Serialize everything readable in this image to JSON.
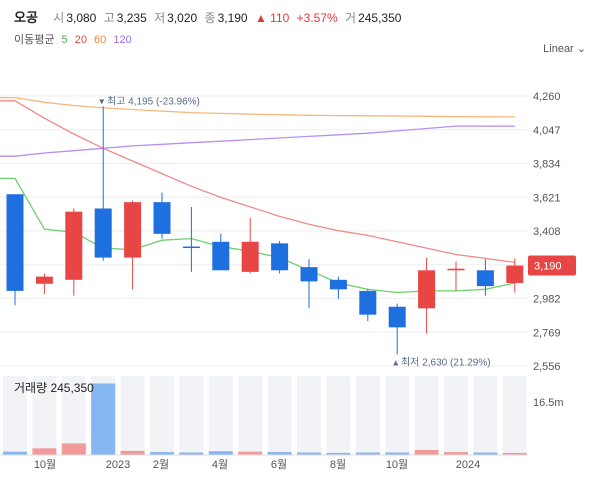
{
  "header": {
    "name": "오공",
    "open_label": "시",
    "open": "3,080",
    "high_label": "고",
    "high": "3,235",
    "low_label": "저",
    "low": "3,020",
    "close_label": "종",
    "close": "3,190",
    "change": "▲ 110",
    "change_pct": "+3.57%",
    "volume_label": "거",
    "volume": "245,350"
  },
  "ma_legend": {
    "label": "이동평균",
    "p5": "5",
    "p20": "20",
    "p60": "60",
    "p120": "120"
  },
  "scale_button": "Linear",
  "colors": {
    "up": "#e84545",
    "down": "#1e6fe0",
    "ma5": "#6fcf6f",
    "ma20": "#f08a8a",
    "ma60": "#f5b77a",
    "ma120": "#b98ef0",
    "grid": "#eeeeee",
    "price_tag": "#e84545"
  },
  "chart_data": {
    "type": "candlestick",
    "x_tick_labels": [
      "10월",
      "2023",
      "2월",
      "4월",
      "6월",
      "8월",
      "10월",
      "2024"
    ],
    "ylim": [
      2556,
      4260
    ],
    "y_ticks": [
      "4,260",
      "4,047",
      "3,834",
      "3,621",
      "3,408",
      "3,195",
      "2,982",
      "2,769",
      "2,556"
    ],
    "current_price": "3,190",
    "candles": [
      {
        "o": 3640,
        "h": 3640,
        "l": 2940,
        "c": 3030
      },
      {
        "o": 3075,
        "h": 3140,
        "l": 3010,
        "c": 3120
      },
      {
        "o": 3100,
        "h": 3550,
        "l": 3000,
        "c": 3530
      },
      {
        "o": 3550,
        "h": 4195,
        "l": 3220,
        "c": 3240
      },
      {
        "o": 3240,
        "h": 3600,
        "l": 3040,
        "c": 3590
      },
      {
        "o": 3590,
        "h": 3650,
        "l": 3360,
        "c": 3390
      },
      {
        "o": 3310,
        "h": 3560,
        "l": 3150,
        "c": 3305
      },
      {
        "o": 3340,
        "h": 3390,
        "l": 3160,
        "c": 3160
      },
      {
        "o": 3150,
        "h": 3490,
        "l": 3140,
        "c": 3340
      },
      {
        "o": 3330,
        "h": 3345,
        "l": 3140,
        "c": 3160
      },
      {
        "o": 3180,
        "h": 3230,
        "l": 2920,
        "c": 3090
      },
      {
        "o": 3100,
        "h": 3120,
        "l": 2980,
        "c": 3040
      },
      {
        "o": 3030,
        "h": 3040,
        "l": 2840,
        "c": 2880
      },
      {
        "o": 2930,
        "h": 2950,
        "l": 2630,
        "c": 2800
      },
      {
        "o": 2920,
        "h": 3240,
        "l": 2760,
        "c": 3160
      },
      {
        "o": 3160,
        "h": 3215,
        "l": 3030,
        "c": 3170
      },
      {
        "o": 3160,
        "h": 3230,
        "l": 3000,
        "c": 3060
      },
      {
        "o": 3080,
        "h": 3235,
        "l": 3020,
        "c": 3190
      }
    ],
    "volume_label": "거래량",
    "volume_value": "245,350",
    "volume_axis_label": "16.5m",
    "volumes": [
      0.8,
      1.6,
      2.8,
      17.2,
      1.0,
      0.7,
      0.6,
      0.9,
      0.8,
      0.7,
      0.6,
      0.5,
      0.6,
      0.6,
      1.2,
      0.7,
      0.6,
      0.5
    ],
    "annotations": {
      "max": {
        "label": "최고",
        "value": "4,195",
        "pct": "(-23.96%)"
      },
      "min": {
        "label": "최저",
        "value": "2,630",
        "pct": "(21.29%)"
      }
    },
    "ma5": [
      3740,
      3420,
      3400,
      3300,
      3290,
      3350,
      3360,
      3310,
      3280,
      3240,
      3160,
      3080,
      3040,
      3020,
      3030,
      3030,
      3040,
      3080
    ],
    "ma20": [
      4230,
      4120,
      4020,
      3930,
      3850,
      3770,
      3690,
      3620,
      3560,
      3500,
      3450,
      3410,
      3380,
      3340,
      3300,
      3260,
      3235,
      3210
    ],
    "ma60": [
      4250,
      4220,
      4200,
      4185,
      4175,
      4165,
      4155,
      4150,
      4145,
      4142,
      4138,
      4136,
      4135,
      4134,
      4132,
      4130,
      4129,
      4128
    ],
    "ma120": [
      3880,
      3900,
      3915,
      3930,
      3945,
      3955,
      3965,
      3975,
      3985,
      3995,
      4005,
      4015,
      4025,
      4040,
      4055,
      4070,
      4070,
      4070
    ]
  }
}
